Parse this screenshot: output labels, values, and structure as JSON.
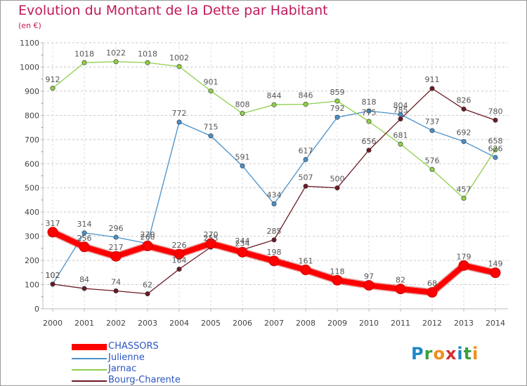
{
  "title": "Evolution du Montant de la Dette par Habitant",
  "unit": "(en €)",
  "logo": {
    "text": "Proxiti",
    "colors": [
      "#1e88c8",
      "#3aa23c",
      "#f28c1b",
      "#d32f2f",
      "#1e88c8",
      "#3aa23c",
      "#f28c1b"
    ]
  },
  "chart_data": {
    "type": "line",
    "title": "Evolution du Montant de la Dette par Habitant",
    "ylabel": "(en €)",
    "xlabel": "",
    "x": [
      "2000",
      "2001",
      "2002",
      "2003",
      "2004",
      "2005",
      "2006",
      "2007",
      "2008",
      "2009",
      "2010",
      "2011",
      "2012",
      "2013",
      "2014"
    ],
    "yticks": [
      "0",
      "100",
      "200",
      "300",
      "400",
      "500",
      "600",
      "700",
      "800",
      "900",
      "1000",
      "1100"
    ],
    "ylim": [
      0,
      1100
    ],
    "grid": "horizontal-dashed",
    "legend": "bottom-left",
    "series": [
      {
        "name": "CHASSORS",
        "color": "#ff0000",
        "values": [
          317,
          256,
          217,
          260,
          226,
          270,
          234,
          198,
          161,
          118,
          97,
          82,
          68,
          179,
          149
        ]
      },
      {
        "name": "Julienne",
        "color": "#4a90c8",
        "values": [
          102,
          314,
          296,
          270,
          772,
          715,
          591,
          434,
          617,
          792,
          818,
          804,
          737,
          692,
          626
        ]
      },
      {
        "name": "Jarnac",
        "color": "#8fcf4a",
        "values": [
          912,
          1018,
          1022,
          1018,
          1002,
          901,
          808,
          844,
          846,
          859,
          775,
          681,
          576,
          457,
          658
        ]
      },
      {
        "name": "Bourg-Charente",
        "color": "#6b1a24",
        "values": [
          102,
          84,
          74,
          62,
          164,
          255,
          244,
          285,
          507,
          500,
          656,
          785,
          911,
          826,
          780
        ]
      }
    ]
  }
}
